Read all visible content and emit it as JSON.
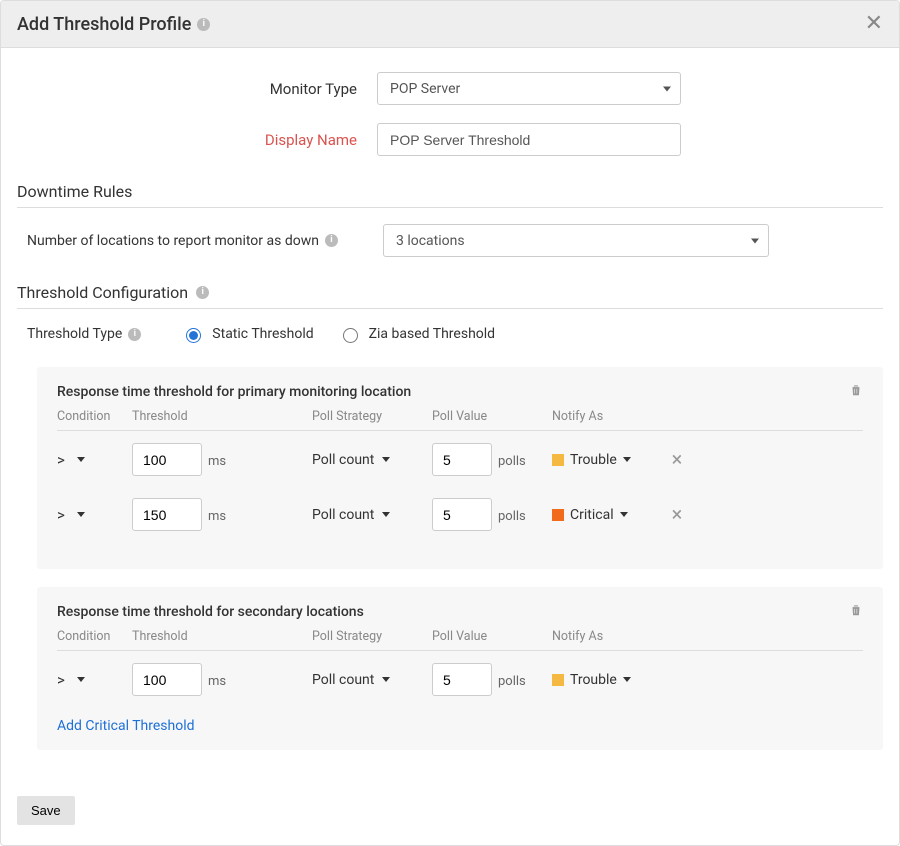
{
  "header": {
    "title": "Add Threshold Profile"
  },
  "form": {
    "monitor_type_label": "Monitor Type",
    "monitor_type_value": "POP Server",
    "display_name_label": "Display Name",
    "display_name_value": "POP Server Threshold"
  },
  "downtime": {
    "section_title": "Downtime Rules",
    "label": "Number of locations to report monitor as down",
    "value": "3 locations"
  },
  "threshold_config": {
    "section_title": "Threshold Configuration",
    "type_label": "Threshold Type",
    "radio_static": "Static Threshold",
    "radio_zia": "Zia based Threshold"
  },
  "headers": {
    "condition": "Condition",
    "threshold": "Threshold",
    "poll_strategy": "Poll Strategy",
    "poll_value": "Poll Value",
    "notify_as": "Notify As"
  },
  "primary": {
    "title": "Response time threshold for primary monitoring location",
    "rows": [
      {
        "cond": ">",
        "thresh": "100",
        "unit": "ms",
        "strat": "Poll count",
        "pval": "5",
        "punit": "polls",
        "notify_label": "Trouble",
        "notify_color": "#f5b942"
      },
      {
        "cond": ">",
        "thresh": "150",
        "unit": "ms",
        "strat": "Poll count",
        "pval": "5",
        "punit": "polls",
        "notify_label": "Critical",
        "notify_color": "#f26a1b"
      }
    ]
  },
  "secondary": {
    "title": "Response time threshold for secondary locations",
    "rows": [
      {
        "cond": ">",
        "thresh": "100",
        "unit": "ms",
        "strat": "Poll count",
        "pval": "5",
        "punit": "polls",
        "notify_label": "Trouble",
        "notify_color": "#f5b942"
      }
    ],
    "add_link": "Add Critical Threshold"
  },
  "footer": {
    "save": "Save"
  }
}
